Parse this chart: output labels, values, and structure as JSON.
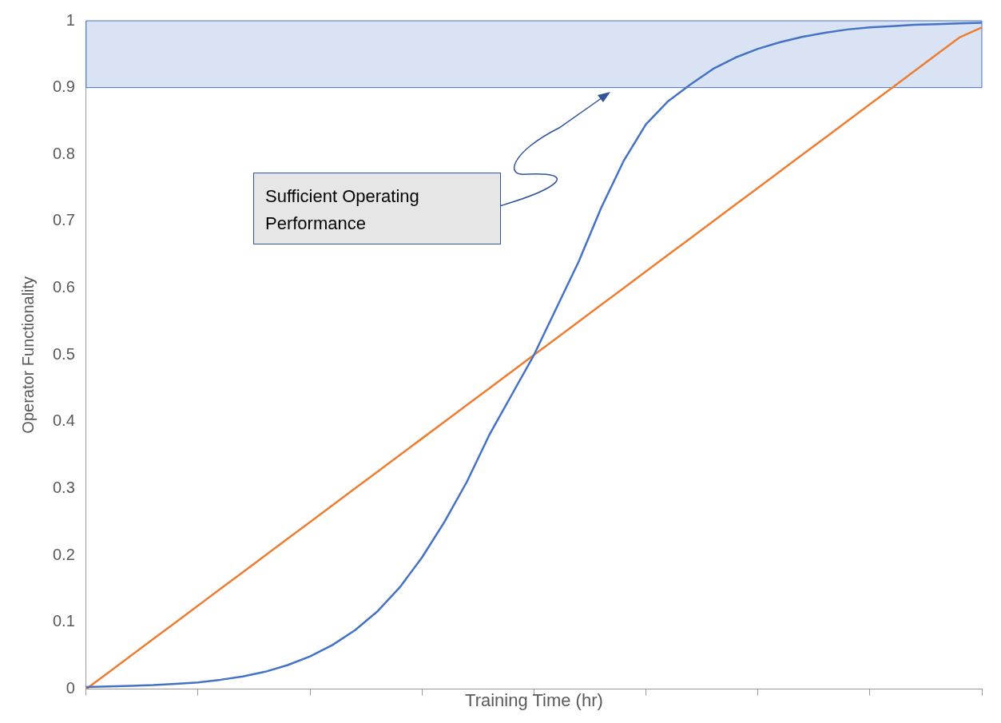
{
  "chart_data": {
    "type": "line",
    "xlabel": "Training Time (hr)",
    "ylabel": "Operator Functionality",
    "categories": [
      null,
      null,
      null,
      null,
      null,
      null,
      null,
      null,
      null,
      null,
      null,
      null,
      null,
      null,
      null,
      null,
      null,
      null,
      null,
      null,
      null,
      null,
      null,
      null,
      null,
      null,
      null,
      null,
      null,
      null,
      null,
      null,
      null,
      null,
      null,
      null,
      null,
      null,
      null,
      null,
      null
    ],
    "series": [
      {
        "color": "#4472c4",
        "values": [
          0.003,
          0.004,
          0.005,
          0.006,
          0.008,
          0.01,
          0.014,
          0.019,
          0.026,
          0.036,
          0.049,
          0.066,
          0.088,
          0.116,
          0.152,
          0.197,
          0.25,
          0.31,
          0.38,
          0.44,
          0.5,
          0.57,
          0.64,
          0.72,
          0.79,
          0.845,
          0.88,
          0.905,
          0.928,
          0.945,
          0.958,
          0.968,
          0.976,
          0.982,
          0.987,
          0.99,
          0.992,
          0.994,
          0.995,
          0.996,
          0.997
        ]
      },
      {
        "color": "#ed7d31",
        "values": [
          0,
          0.025,
          0.05,
          0.075,
          0.1,
          0.125,
          0.15,
          0.175,
          0.2,
          0.225,
          0.25,
          0.275,
          0.3,
          0.325,
          0.35,
          0.375,
          0.4,
          0.425,
          0.45,
          0.475,
          0.5,
          0.525,
          0.55,
          0.575,
          0.6,
          0.625,
          0.65,
          0.675,
          0.7,
          0.725,
          0.75,
          0.775,
          0.8,
          0.825,
          0.85,
          0.875,
          0.9,
          0.925,
          0.95,
          0.975,
          0.99
        ]
      }
    ],
    "bands": [
      {
        "axis": "y",
        "from": 0.9,
        "to": 1,
        "color": "#dae3f3"
      }
    ],
    "annotations": [
      "Sufficient Operating Performance"
    ],
    "ylim": [
      0,
      1
    ],
    "yticks": [
      0,
      0.1,
      0.2,
      0.3,
      0.4,
      0.5,
      0.6,
      0.7,
      0.8,
      0.9,
      1
    ],
    "grid": false,
    "legend": false,
    "tick_labels": "y",
    "marker": "none",
    "line_style": "solid"
  }
}
